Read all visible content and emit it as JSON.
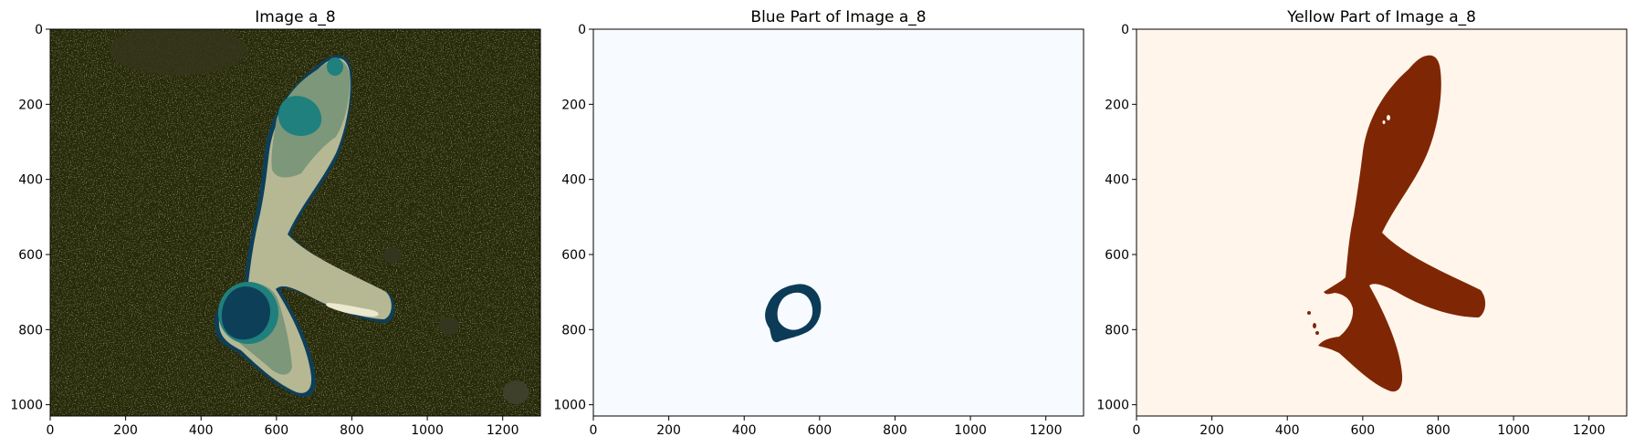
{
  "figure": {
    "background": "#ffffff",
    "image_width": 1300,
    "image_height": 1030
  },
  "chart_data": [
    {
      "type": "image",
      "title": "Image a_8",
      "colormap": "quantized",
      "background_color": "#272a08",
      "xlim": [
        0,
        1300
      ],
      "ylim": [
        1030,
        0
      ],
      "xticks": [
        0,
        200,
        400,
        600,
        800,
        1000,
        1200
      ],
      "yticks": [
        0,
        200,
        400,
        600,
        800,
        1000
      ],
      "palette": {
        "dark_olive": "#272a08",
        "olive_noise": "#3b3c28",
        "sage": "#7d977a",
        "beige": "#b5b693",
        "teal": "#1f807d",
        "navy": "#0e3f59",
        "cream": "#e9e8d2"
      }
    },
    {
      "type": "image",
      "title": "Blue Part of Image a_8",
      "colormap": "blues",
      "background_color": "#f7fbff",
      "mask_color": "#0b3b57",
      "xlim": [
        0,
        1300
      ],
      "ylim": [
        1030,
        0
      ],
      "xticks": [
        0,
        200,
        400,
        600,
        800,
        1000,
        1200
      ],
      "yticks": [
        0,
        200,
        400,
        600,
        800,
        1000
      ]
    },
    {
      "type": "image",
      "title": "Yellow Part of Image a_8",
      "colormap": "oranges",
      "background_color": "#fff5eb",
      "mask_color": "#7f2704",
      "xlim": [
        0,
        1300
      ],
      "ylim": [
        1030,
        0
      ],
      "xticks": [
        0,
        200,
        400,
        600,
        800,
        1000,
        1200
      ],
      "yticks": [
        0,
        200,
        400,
        600,
        800,
        1000
      ]
    }
  ]
}
